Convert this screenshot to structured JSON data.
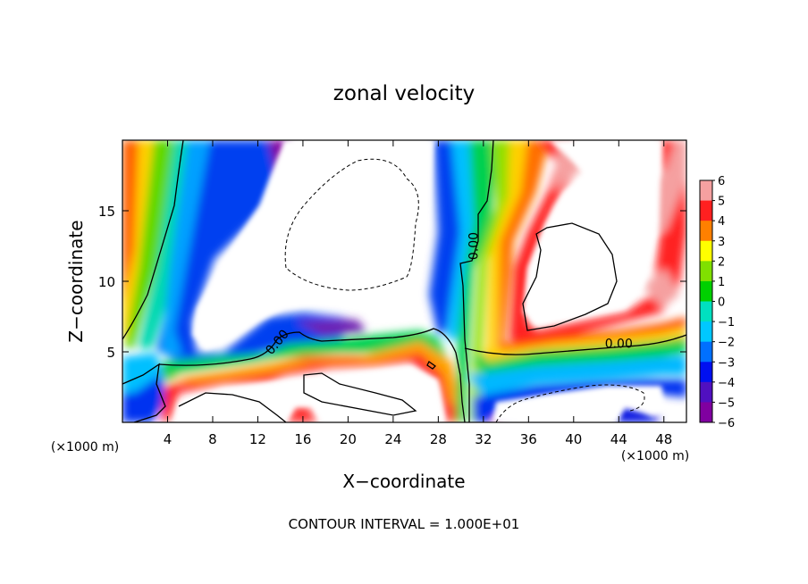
{
  "chart_data": {
    "type": "heatmap",
    "title": "zonal velocity",
    "xlabel": "X−coordinate",
    "ylabel": "Z−coordinate",
    "x_unit_left": "(×1000 m)",
    "x_unit_right": "(×1000 m)",
    "footer": "CONTOUR INTERVAL = 1.000E+01",
    "xlim": [
      0,
      50
    ],
    "ylim": [
      0,
      20
    ],
    "x_ticks": [
      4,
      8,
      12,
      16,
      20,
      24,
      28,
      32,
      36,
      40,
      44,
      48
    ],
    "x_tick_labels": [
      "4",
      "8",
      "12",
      "16",
      "20",
      "24",
      "28",
      "32",
      "36",
      "40",
      "44",
      "48"
    ],
    "y_ticks": [
      5,
      10,
      15
    ],
    "y_tick_labels": [
      "5",
      "10",
      "15"
    ],
    "colorbar": {
      "min": -6,
      "max": 6,
      "ticks": [
        6,
        5,
        4,
        3,
        2,
        1,
        0,
        -1,
        -2,
        -3,
        -4,
        -5,
        -6
      ],
      "tick_labels": [
        "6",
        "5",
        "4",
        "3",
        "2",
        "1",
        "0",
        "−1",
        "−2",
        "−3",
        "−4",
        "−5",
        "−6"
      ],
      "colors": [
        "#f5a0a0",
        "#ff2020",
        "#ff8000",
        "#ffff00",
        "#80e000",
        "#00d000",
        "#00e0c0",
        "#00c8ff",
        "#0070ff",
        "#0010f0",
        "#5010c0",
        "#8000a0"
      ]
    },
    "contour_labels": [
      {
        "text": "0.00",
        "x": 31.5,
        "y": 12.5,
        "rotate": -90
      },
      {
        "text": "0.00",
        "x": 14,
        "y": 5.5,
        "rotate": -50
      },
      {
        "text": "0.00",
        "x": 44,
        "y": 5.3,
        "rotate": 0
      }
    ],
    "grid": false
  }
}
